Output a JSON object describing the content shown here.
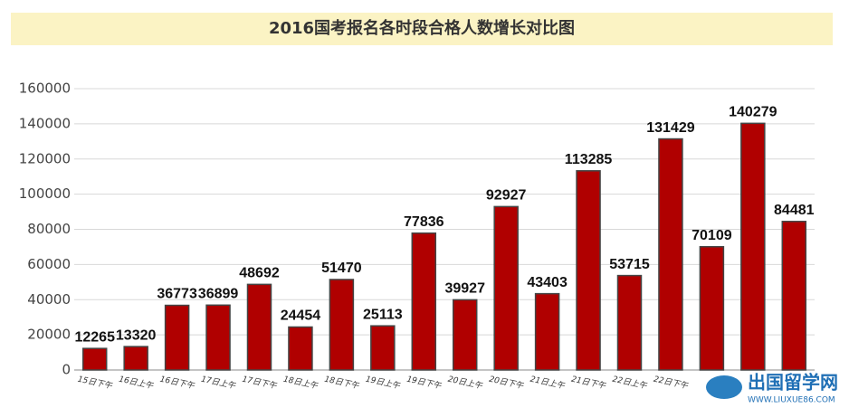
{
  "chart_data": {
    "type": "bar",
    "title": "2016国考报名各时段合格人数增长对比图",
    "categories": [
      "15日下午",
      "16日上午",
      "16日下午",
      "17日上午",
      "17日下午",
      "18日上午",
      "18日下午",
      "19日上午",
      "19日下午",
      "20日上午",
      "20日下午",
      "21日上午",
      "21日下午",
      "22日上午",
      "22日下午",
      null,
      null,
      null
    ],
    "values": [
      12265,
      13320,
      36773,
      36899,
      48692,
      24454,
      51470,
      25113,
      77836,
      39927,
      92927,
      43403,
      113285,
      53715,
      131429,
      70109,
      140279,
      84481
    ],
    "color": "#b00000",
    "ylim": [
      0,
      160000
    ],
    "yticks": [
      0,
      20000,
      40000,
      60000,
      80000,
      100000,
      120000,
      140000,
      160000
    ],
    "grid": true,
    "watermark": "出国留学网",
    "watermark_url": "WWW.LIUXUE86.COM"
  }
}
